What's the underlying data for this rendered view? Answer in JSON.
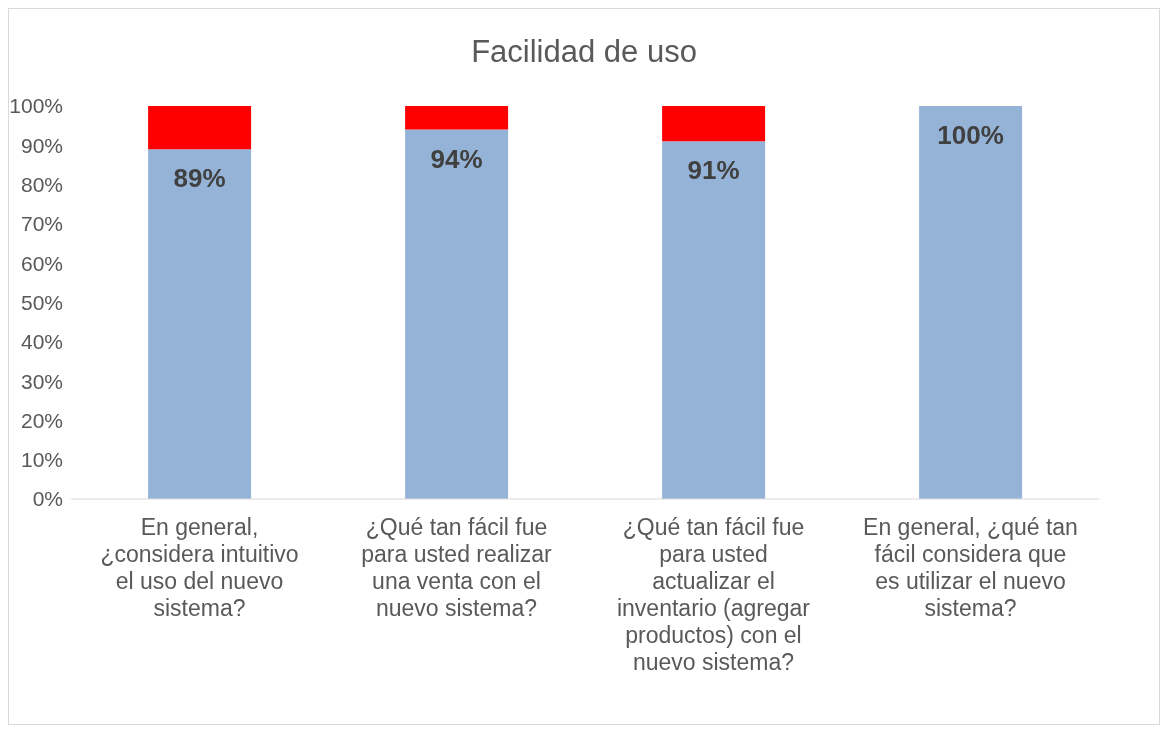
{
  "chart_data": {
    "type": "bar",
    "title": "Facilidad de uso",
    "stacked": true,
    "categories": [
      "En general, ¿considera intuitivo el uso del nuevo sistema?",
      "¿Qué tan fácil fue para usted realizar una venta con el nuevo sistema?",
      "¿Qué tan fácil fue para usted actualizar el inventario (agregar productos) con el nuevo sistema?",
      "En general, ¿qué tan fácil considera que es utilizar el nuevo sistema?"
    ],
    "series": [
      {
        "color": "#95b3d7",
        "values": [
          89,
          94,
          91,
          100
        ],
        "value_labels": [
          "89%",
          "94%",
          "91%",
          "100%"
        ]
      },
      {
        "color": "#ff0000",
        "values": [
          11,
          6,
          9,
          0
        ]
      }
    ],
    "ylim": [
      0,
      100
    ],
    "yticks": [
      {
        "value": 0,
        "label": "0%"
      },
      {
        "value": 10,
        "label": "10%"
      },
      {
        "value": 20,
        "label": "20%"
      },
      {
        "value": 30,
        "label": "30%"
      },
      {
        "value": 40,
        "label": "40%"
      },
      {
        "value": 50,
        "label": "50%"
      },
      {
        "value": 60,
        "label": "60%"
      },
      {
        "value": 70,
        "label": "70%"
      },
      {
        "value": 80,
        "label": "80%"
      },
      {
        "value": 90,
        "label": "90%"
      },
      {
        "value": 100,
        "label": "100%"
      }
    ],
    "grid": false,
    "legend": false
  }
}
